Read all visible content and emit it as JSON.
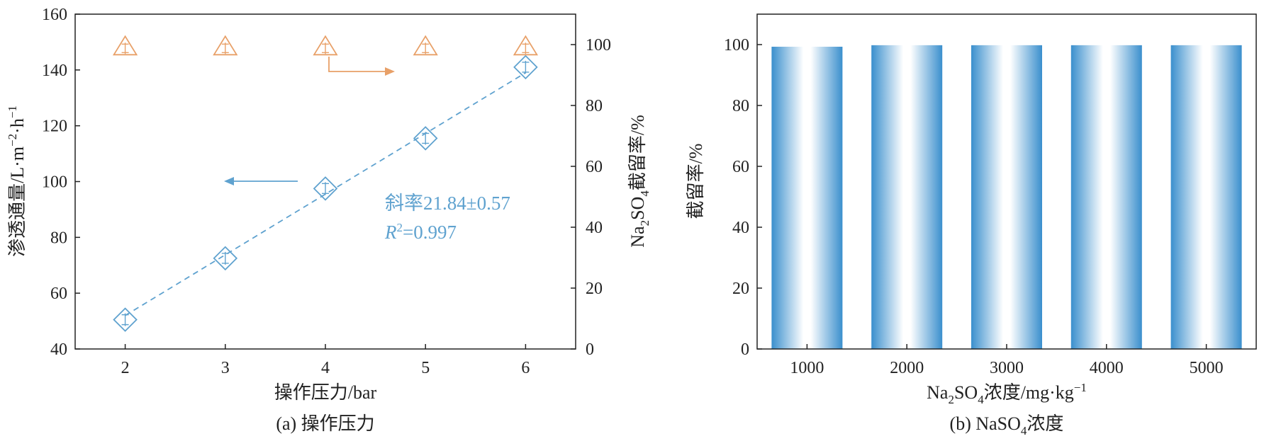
{
  "colors": {
    "blue": "#5fa2cf",
    "orange": "#e8a068",
    "axis": "#222222",
    "bar": "#3f93cf"
  },
  "chart_data": [
    {
      "type": "scatter",
      "caption": "(a) 操作压力",
      "xlabel": "操作压力/bar",
      "ylabel": "渗透通量/L·m⁻²·h⁻¹",
      "y2label": "Na₂SO₄截留率/%",
      "xlim": [
        1.5,
        6.5
      ],
      "ylim": [
        40,
        160
      ],
      "y2lim": [
        0,
        110
      ],
      "xticks": [
        "2",
        "3",
        "4",
        "5",
        "6"
      ],
      "yticks": [
        "40",
        "60",
        "80",
        "100",
        "120",
        "140",
        "160"
      ],
      "y2ticks": [
        "0",
        "20",
        "40",
        "60",
        "80",
        "100"
      ],
      "series": [
        {
          "axis": "left",
          "marker": "diamond",
          "x": [
            2,
            3,
            4,
            5,
            6
          ],
          "y": [
            50.5,
            72.5,
            97.5,
            115.5,
            141
          ]
        },
        {
          "axis": "right",
          "marker": "triangle",
          "x": [
            2,
            3,
            4,
            5,
            6
          ],
          "y": [
            99,
            99,
            99,
            99,
            99
          ]
        }
      ],
      "fit_line": {
        "x": [
          2,
          6
        ],
        "y": [
          52,
          139
        ]
      },
      "annotation": {
        "slope_text": "斜率21.84±0.57",
        "r2_text": "=0.997"
      }
    },
    {
      "type": "bar",
      "caption": "(b) NaSO₄浓度",
      "xlabel": "Na₂SO₄浓度/mg·kg⁻¹",
      "ylabel": "截留率/%",
      "ylim": [
        0,
        110
      ],
      "yticks": [
        "0",
        "20",
        "40",
        "60",
        "80",
        "100"
      ],
      "categories": [
        "1000",
        "2000",
        "3000",
        "4000",
        "5000"
      ],
      "values": [
        99.3,
        99.8,
        99.8,
        99.8,
        99.8
      ]
    }
  ],
  "text": {
    "a_xlabel": "操作压力/bar",
    "a_ylabel_prefix": "渗透通量/L",
    "a_ylabel_mid1": "·m",
    "a_ylabel_sup1": "−2",
    "a_ylabel_mid2": "·h",
    "a_ylabel_sup2": "−1",
    "a_y2label_na": "Na",
    "a_y2label_sub1": "2",
    "a_y2label_so": "SO",
    "a_y2label_sub2": "4",
    "a_y2label_rest": "截留率/%",
    "a_caption": "(a) 操作压力",
    "slope_text": "斜率21.84±0.57",
    "r2_R": "R",
    "r2_sup": "2",
    "r2_rest": "=0.997",
    "b_ylabel": "截留率/%",
    "b_xlabel_na": "Na",
    "b_xlabel_sub1": "2",
    "b_xlabel_so": "SO",
    "b_xlabel_sub2": "4",
    "b_xlabel_rest": "浓度/mg·kg",
    "b_xlabel_sup": "−1",
    "b_caption_pre": "(b) NaSO",
    "b_caption_sub": "4",
    "b_caption_rest": "浓度"
  }
}
